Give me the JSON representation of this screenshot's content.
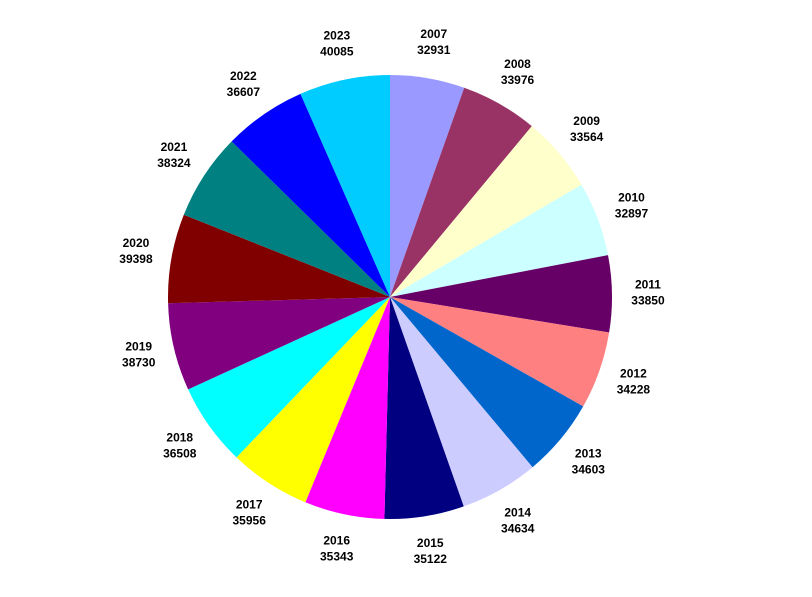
{
  "chart_data": {
    "type": "pie",
    "categories": [
      "2007",
      "2008",
      "2009",
      "2010",
      "2011",
      "2012",
      "2013",
      "2014",
      "2015",
      "2016",
      "2017",
      "2018",
      "2019",
      "2020",
      "2021",
      "2022",
      "2023"
    ],
    "values": [
      32931,
      33976,
      33564,
      32897,
      33850,
      34228,
      34603,
      34634,
      35122,
      35343,
      35956,
      36508,
      38730,
      39398,
      38324,
      36607,
      40085
    ],
    "colors": [
      "#9999ff",
      "#993366",
      "#ffffcc",
      "#ccffff",
      "#660066",
      "#ff8080",
      "#0066cc",
      "#ccccff",
      "#000080",
      "#ff00ff",
      "#ffff00",
      "#00ffff",
      "#800080",
      "#800000",
      "#008080",
      "#0000ff",
      "#00ccff"
    ]
  }
}
